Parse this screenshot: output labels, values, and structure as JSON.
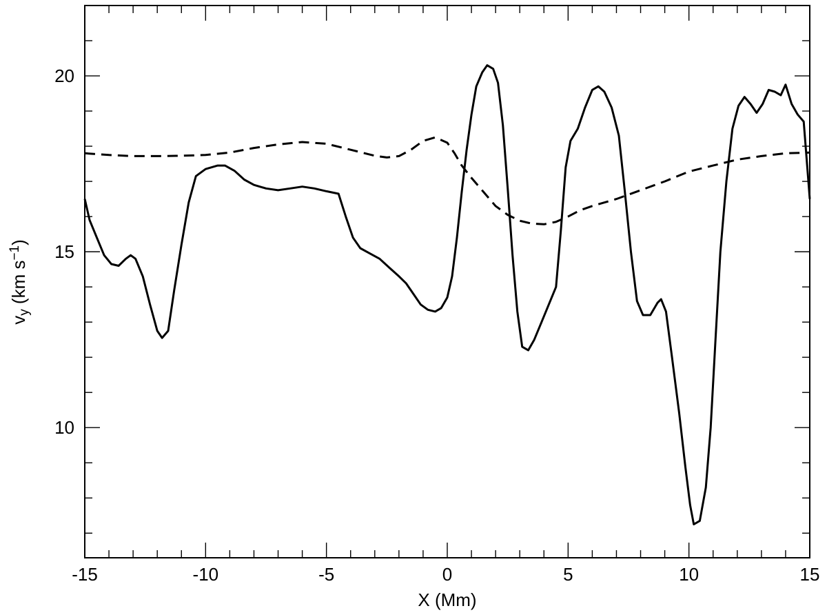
{
  "chart_data": {
    "type": "line",
    "title": "",
    "xlabel": "X (Mm)",
    "ylabel": {
      "base": "v",
      "subscript": "y",
      "units_open": " (km s",
      "units_power": "−1",
      "units_close": ")"
    },
    "xlim": [
      -15,
      15
    ],
    "ylim": [
      6.3,
      22.0
    ],
    "grid": false,
    "legend": "none",
    "x_ticks": [
      -15,
      -10,
      -5,
      0,
      5,
      10,
      15
    ],
    "x_tick_labels": [
      "-15",
      "-10",
      "-5",
      "0",
      "5",
      "10",
      "15"
    ],
    "y_ticks": [
      10,
      15,
      20
    ],
    "y_tick_labels": [
      "10",
      "15",
      "20"
    ],
    "x_minor_step": 1,
    "y_minor_step": 1,
    "series": [
      {
        "style": "solid",
        "color": "#000000",
        "points": [
          [
            -15.0,
            16.5
          ],
          [
            -14.8,
            15.9
          ],
          [
            -14.5,
            15.4
          ],
          [
            -14.2,
            14.9
          ],
          [
            -13.9,
            14.65
          ],
          [
            -13.6,
            14.6
          ],
          [
            -13.3,
            14.8
          ],
          [
            -13.1,
            14.9
          ],
          [
            -12.9,
            14.8
          ],
          [
            -12.6,
            14.3
          ],
          [
            -12.3,
            13.5
          ],
          [
            -12.0,
            12.75
          ],
          [
            -11.8,
            12.55
          ],
          [
            -11.55,
            12.75
          ],
          [
            -11.3,
            13.9
          ],
          [
            -11.0,
            15.2
          ],
          [
            -10.7,
            16.4
          ],
          [
            -10.4,
            17.15
          ],
          [
            -10.0,
            17.35
          ],
          [
            -9.5,
            17.45
          ],
          [
            -9.2,
            17.45
          ],
          [
            -8.8,
            17.3
          ],
          [
            -8.4,
            17.05
          ],
          [
            -8.0,
            16.9
          ],
          [
            -7.5,
            16.8
          ],
          [
            -7.0,
            16.75
          ],
          [
            -6.5,
            16.8
          ],
          [
            -6.0,
            16.85
          ],
          [
            -5.5,
            16.8
          ],
          [
            -5.0,
            16.72
          ],
          [
            -4.5,
            16.65
          ],
          [
            -4.2,
            16.0
          ],
          [
            -3.9,
            15.4
          ],
          [
            -3.6,
            15.1
          ],
          [
            -3.2,
            14.95
          ],
          [
            -2.8,
            14.8
          ],
          [
            -2.4,
            14.55
          ],
          [
            -2.0,
            14.3
          ],
          [
            -1.7,
            14.1
          ],
          [
            -1.4,
            13.8
          ],
          [
            -1.1,
            13.5
          ],
          [
            -0.8,
            13.35
          ],
          [
            -0.5,
            13.3
          ],
          [
            -0.25,
            13.4
          ],
          [
            0.0,
            13.7
          ],
          [
            0.2,
            14.3
          ],
          [
            0.4,
            15.4
          ],
          [
            0.6,
            16.7
          ],
          [
            0.8,
            17.9
          ],
          [
            1.0,
            18.9
          ],
          [
            1.2,
            19.7
          ],
          [
            1.45,
            20.1
          ],
          [
            1.65,
            20.3
          ],
          [
            1.9,
            20.2
          ],
          [
            2.1,
            19.8
          ],
          [
            2.3,
            18.6
          ],
          [
            2.5,
            16.8
          ],
          [
            2.7,
            14.9
          ],
          [
            2.9,
            13.3
          ],
          [
            3.1,
            12.3
          ],
          [
            3.35,
            12.2
          ],
          [
            3.6,
            12.5
          ],
          [
            3.9,
            13.0
          ],
          [
            4.2,
            13.5
          ],
          [
            4.5,
            14.0
          ],
          [
            4.7,
            15.6
          ],
          [
            4.9,
            17.4
          ],
          [
            5.1,
            18.15
          ],
          [
            5.4,
            18.5
          ],
          [
            5.7,
            19.1
          ],
          [
            6.0,
            19.6
          ],
          [
            6.25,
            19.7
          ],
          [
            6.5,
            19.55
          ],
          [
            6.8,
            19.1
          ],
          [
            7.1,
            18.3
          ],
          [
            7.35,
            16.7
          ],
          [
            7.6,
            15.0
          ],
          [
            7.85,
            13.6
          ],
          [
            8.1,
            13.2
          ],
          [
            8.4,
            13.2
          ],
          [
            8.7,
            13.55
          ],
          [
            8.85,
            13.65
          ],
          [
            9.05,
            13.3
          ],
          [
            9.3,
            12.0
          ],
          [
            9.6,
            10.4
          ],
          [
            9.85,
            8.9
          ],
          [
            10.05,
            7.8
          ],
          [
            10.2,
            7.25
          ],
          [
            10.45,
            7.35
          ],
          [
            10.7,
            8.3
          ],
          [
            10.9,
            10.0
          ],
          [
            11.1,
            12.5
          ],
          [
            11.3,
            15.0
          ],
          [
            11.55,
            17.0
          ],
          [
            11.8,
            18.5
          ],
          [
            12.05,
            19.15
          ],
          [
            12.3,
            19.4
          ],
          [
            12.55,
            19.2
          ],
          [
            12.8,
            18.95
          ],
          [
            13.05,
            19.2
          ],
          [
            13.3,
            19.6
          ],
          [
            13.55,
            19.55
          ],
          [
            13.8,
            19.45
          ],
          [
            14.0,
            19.75
          ],
          [
            14.25,
            19.2
          ],
          [
            14.5,
            18.9
          ],
          [
            14.75,
            18.7
          ],
          [
            15.0,
            16.5
          ]
        ]
      },
      {
        "style": "dashed",
        "color": "#000000",
        "points": [
          [
            -15.0,
            17.8
          ],
          [
            -14.0,
            17.75
          ],
          [
            -13.0,
            17.72
          ],
          [
            -12.0,
            17.72
          ],
          [
            -11.0,
            17.73
          ],
          [
            -10.0,
            17.75
          ],
          [
            -9.0,
            17.82
          ],
          [
            -8.0,
            17.95
          ],
          [
            -7.0,
            18.05
          ],
          [
            -6.0,
            18.12
          ],
          [
            -5.0,
            18.07
          ],
          [
            -4.0,
            17.9
          ],
          [
            -3.0,
            17.73
          ],
          [
            -2.5,
            17.68
          ],
          [
            -2.0,
            17.72
          ],
          [
            -1.5,
            17.9
          ],
          [
            -1.0,
            18.15
          ],
          [
            -0.5,
            18.25
          ],
          [
            0.0,
            18.1
          ],
          [
            0.3,
            17.8
          ],
          [
            0.6,
            17.45
          ],
          [
            1.0,
            17.1
          ],
          [
            1.5,
            16.7
          ],
          [
            2.0,
            16.3
          ],
          [
            2.5,
            16.05
          ],
          [
            3.0,
            15.88
          ],
          [
            3.5,
            15.8
          ],
          [
            4.0,
            15.78
          ],
          [
            4.5,
            15.85
          ],
          [
            5.0,
            16.0
          ],
          [
            5.5,
            16.18
          ],
          [
            6.0,
            16.3
          ],
          [
            7.0,
            16.5
          ],
          [
            8.0,
            16.75
          ],
          [
            9.0,
            17.0
          ],
          [
            10.0,
            17.28
          ],
          [
            11.0,
            17.45
          ],
          [
            12.0,
            17.62
          ],
          [
            13.0,
            17.72
          ],
          [
            14.0,
            17.8
          ],
          [
            15.0,
            17.82
          ]
        ]
      }
    ]
  }
}
